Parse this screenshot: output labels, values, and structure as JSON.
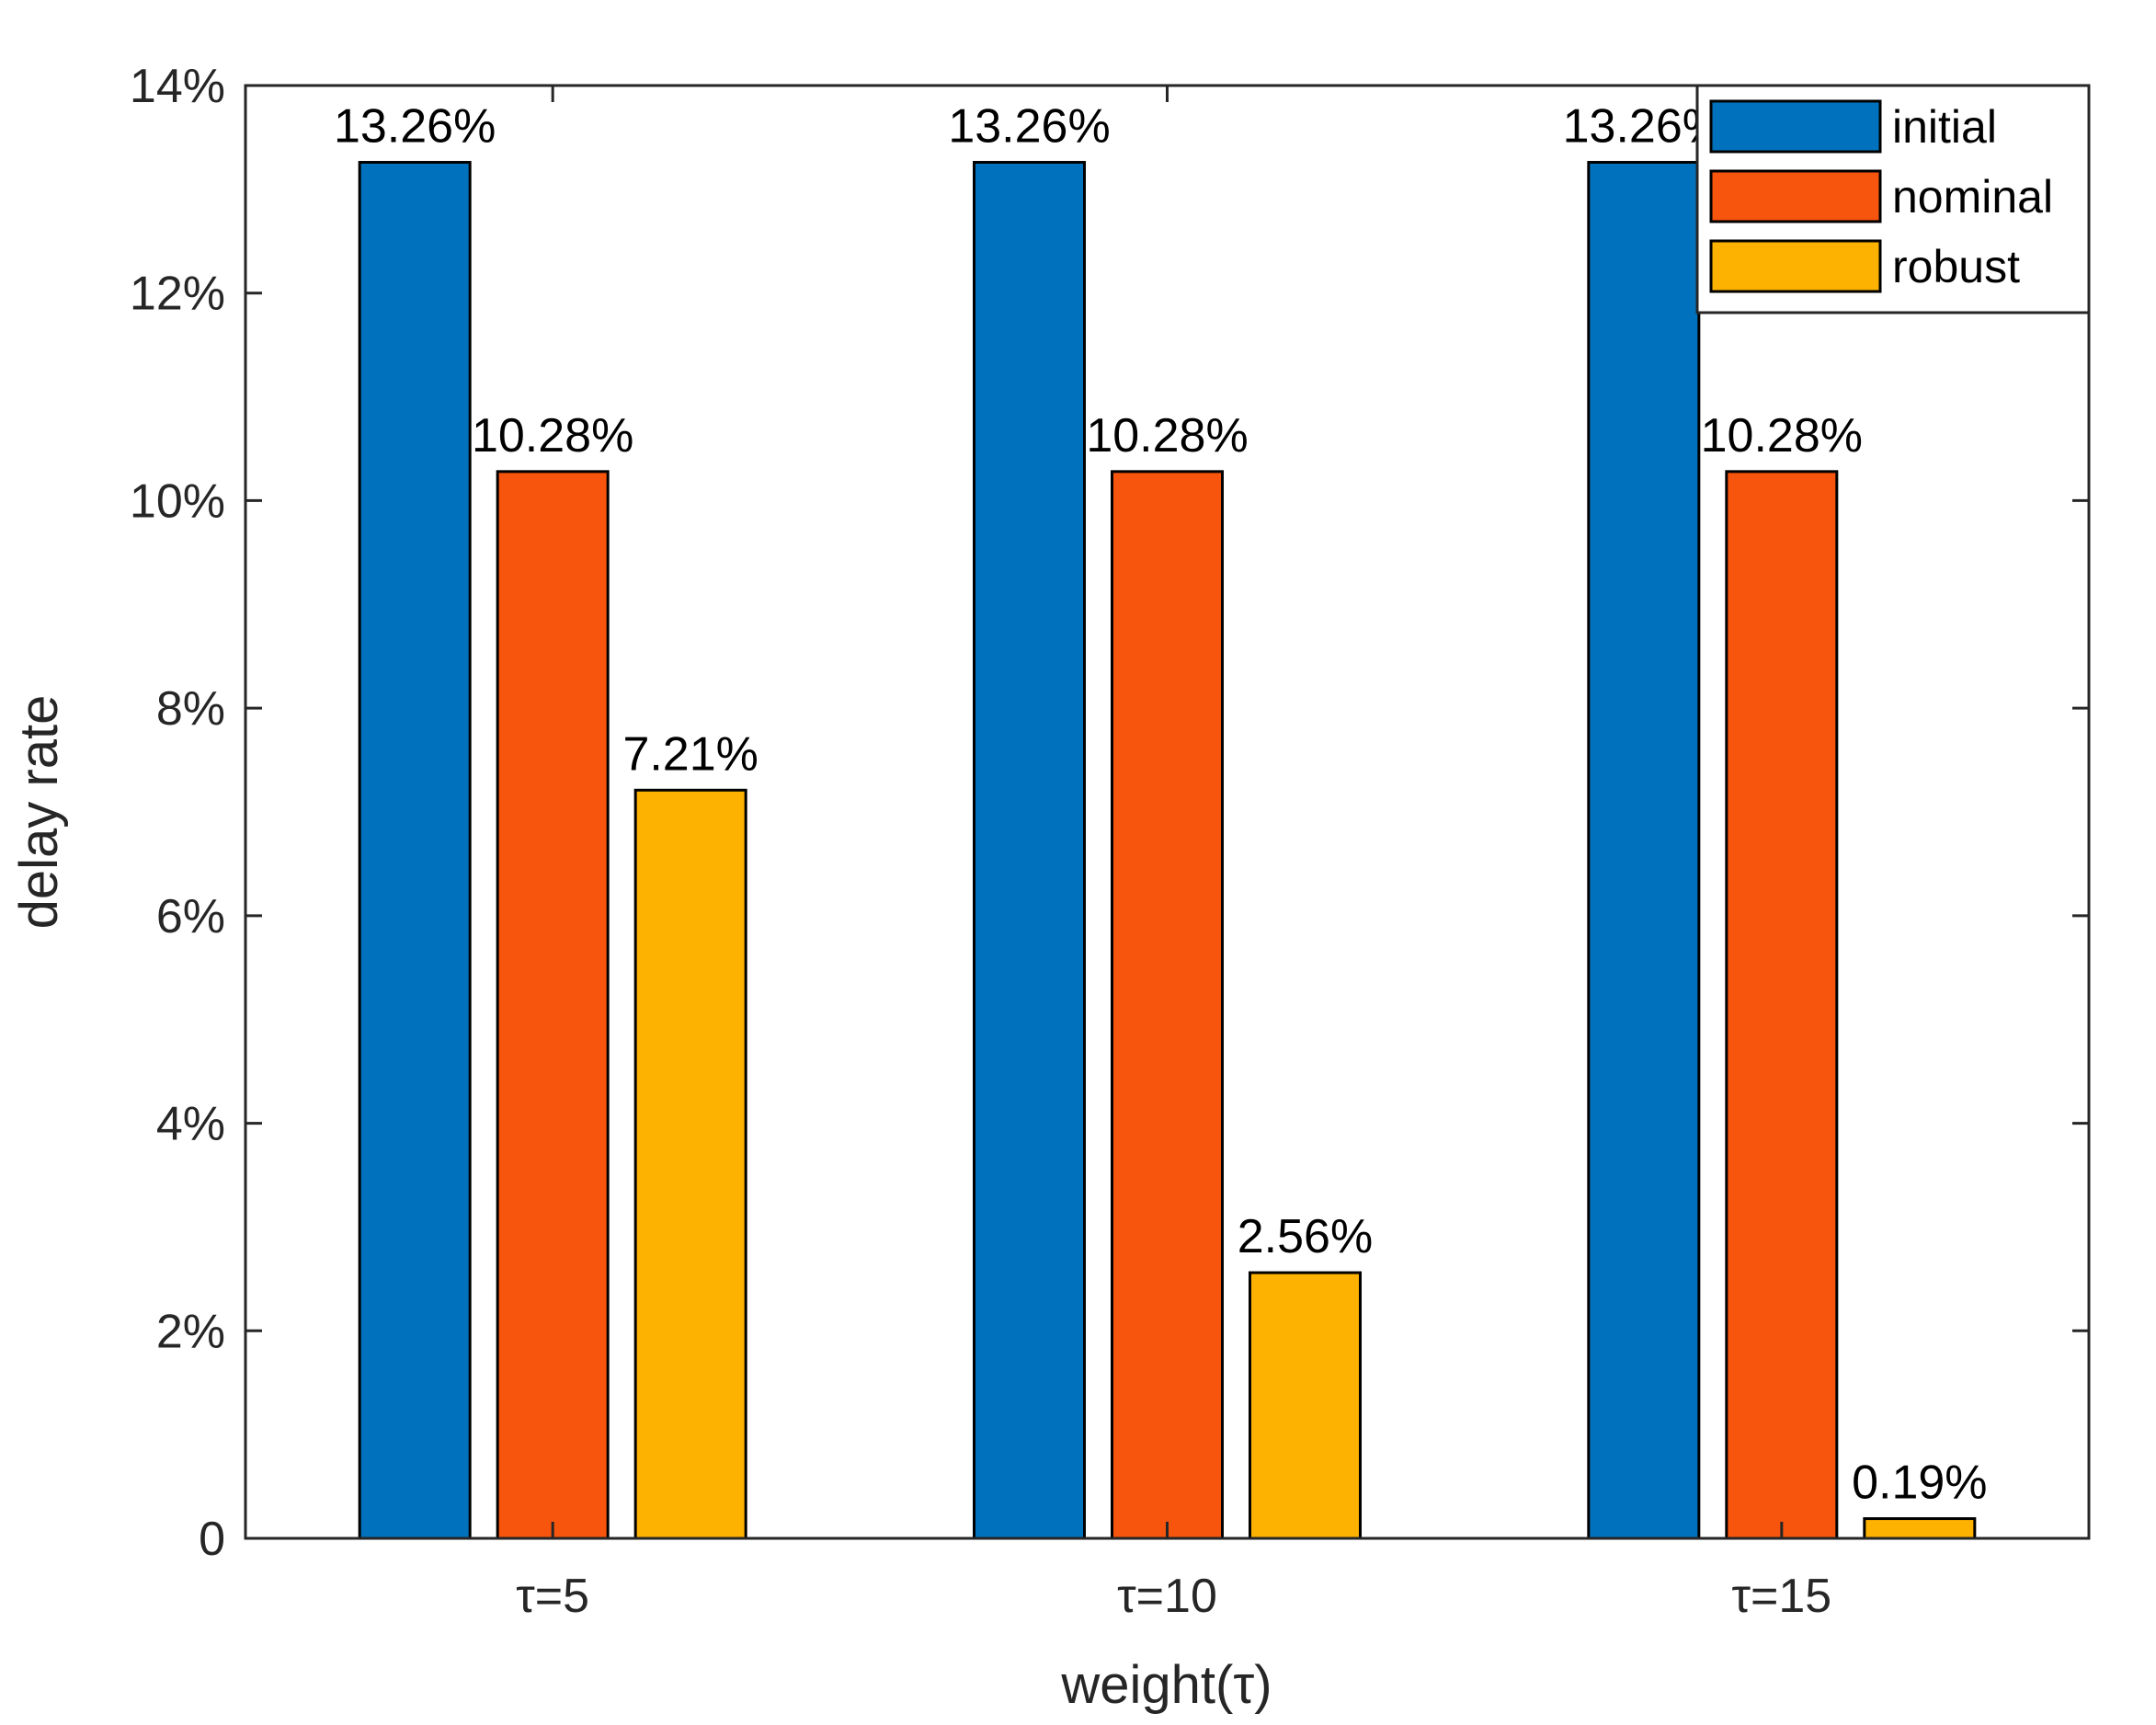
{
  "chart_data": {
    "type": "bar",
    "title": "",
    "xlabel": "weight(τ)",
    "ylabel": "delay rate",
    "categories": [
      "τ=5",
      "τ=10",
      "τ=15"
    ],
    "ylim": [
      0,
      14
    ],
    "yticks": [
      0,
      2,
      4,
      6,
      8,
      10,
      12,
      14
    ],
    "ytick_labels": [
      "0",
      "2%",
      "4%",
      "6%",
      "8%",
      "10%",
      "12%",
      "14%"
    ],
    "grid": false,
    "legend_position": "top-right",
    "series": [
      {
        "name": "initial",
        "color": "#0072BD",
        "values": [
          13.26,
          13.26,
          13.26
        ],
        "labels": [
          "13.26%",
          "13.26%",
          "13.26%"
        ]
      },
      {
        "name": "nominal",
        "color": "#F7540D",
        "values": [
          10.28,
          10.28,
          10.28
        ],
        "labels": [
          "10.28%",
          "10.28%",
          "10.28%"
        ]
      },
      {
        "name": "robust",
        "color": "#FDB100",
        "values": [
          7.21,
          2.56,
          0.19
        ],
        "labels": [
          "7.21%",
          "2.56%",
          "0.19%"
        ]
      }
    ]
  }
}
